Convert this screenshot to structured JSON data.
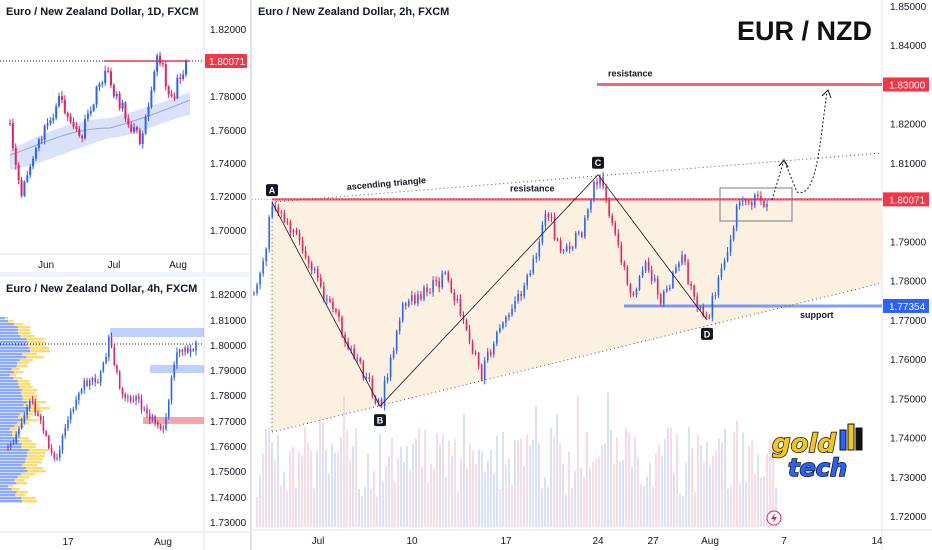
{
  "panes": {
    "daily": {
      "title": "Euro / New Zealand Dollar, 1D, FXCM",
      "y_ticks": [
        "1.82000",
        "1.80000",
        "1.78000",
        "1.76000",
        "1.74000",
        "1.72000",
        "1.70000"
      ],
      "x_ticks": [
        "Jun",
        "Jul",
        "Aug"
      ],
      "price_label": "1.80071"
    },
    "h4": {
      "title": "Euro / New Zealand Dollar, 4h, FXCM",
      "y_ticks": [
        "1.82000",
        "1.81000",
        "1.80000",
        "1.79000",
        "1.78000",
        "1.77000",
        "1.76000",
        "1.75000",
        "1.74000",
        "1.73000"
      ],
      "x_ticks": [
        "17",
        "Aug"
      ]
    },
    "main": {
      "title": "Euro / New Zealand Dollar, 2h, FXCM",
      "big_title": "EUR / NZD",
      "y_ticks": [
        "1.85000",
        "1.84000",
        "1.83000",
        "1.82000",
        "1.81000",
        "1.80000",
        "1.79000",
        "1.78000",
        "1.77000",
        "1.76000",
        "1.75000",
        "1.74000",
        "1.73000",
        "1.72000"
      ],
      "x_ticks": [
        "Jul",
        "10",
        "17",
        "24",
        "27",
        "Aug",
        "7",
        "14"
      ],
      "labels": {
        "resistance_top": "resistance",
        "resistance_mid": "resistance",
        "support": "support",
        "triangle": "ascending triangle"
      },
      "points": [
        "A",
        "B",
        "C",
        "D"
      ],
      "price_tags": {
        "resistance_price": "1.83000",
        "current_price": "1.80071",
        "support_price": "1.77354"
      },
      "logo": {
        "line1": "gold",
        "line2": "tech"
      }
    }
  },
  "colors": {
    "up": "#2962ff",
    "down": "#e91e63",
    "resistance": "#f23645",
    "support": "#2962ff",
    "zone": "#fbeed9",
    "logo_gold": "#f5c518"
  },
  "chart_data": [
    {
      "type": "line",
      "title": "Euro / New Zealand Dollar, 1D, FXCM",
      "x_ticks": [
        "Jun",
        "Jul",
        "Aug"
      ],
      "ylim": [
        1.69,
        1.83
      ],
      "last_price": 1.80071
    },
    {
      "type": "line",
      "title": "Euro / New Zealand Dollar, 4h, FXCM",
      "x_ticks": [
        "17",
        "Aug"
      ],
      "ylim": [
        1.728,
        1.828
      ]
    },
    {
      "type": "line",
      "title": "Euro / New Zealand Dollar, 2h, FXCM",
      "x_ticks": [
        "Jul",
        "10",
        "17",
        "24",
        "27",
        "Aug",
        "7",
        "14"
      ],
      "ylim": [
        1.715,
        1.851
      ],
      "points": [
        {
          "label": "A",
          "x": "Jun 28",
          "y": 1.8
        },
        {
          "label": "B",
          "x": "Jul 8",
          "y": 1.748
        },
        {
          "label": "C",
          "x": "Jul 24",
          "y": 1.807
        },
        {
          "label": "D",
          "x": "Jul 31",
          "y": 1.77
        }
      ],
      "levels": [
        {
          "name": "resistance",
          "y": 1.83
        },
        {
          "name": "resistance",
          "y": 1.80071
        },
        {
          "name": "support",
          "y": 1.77354
        }
      ]
    }
  ]
}
